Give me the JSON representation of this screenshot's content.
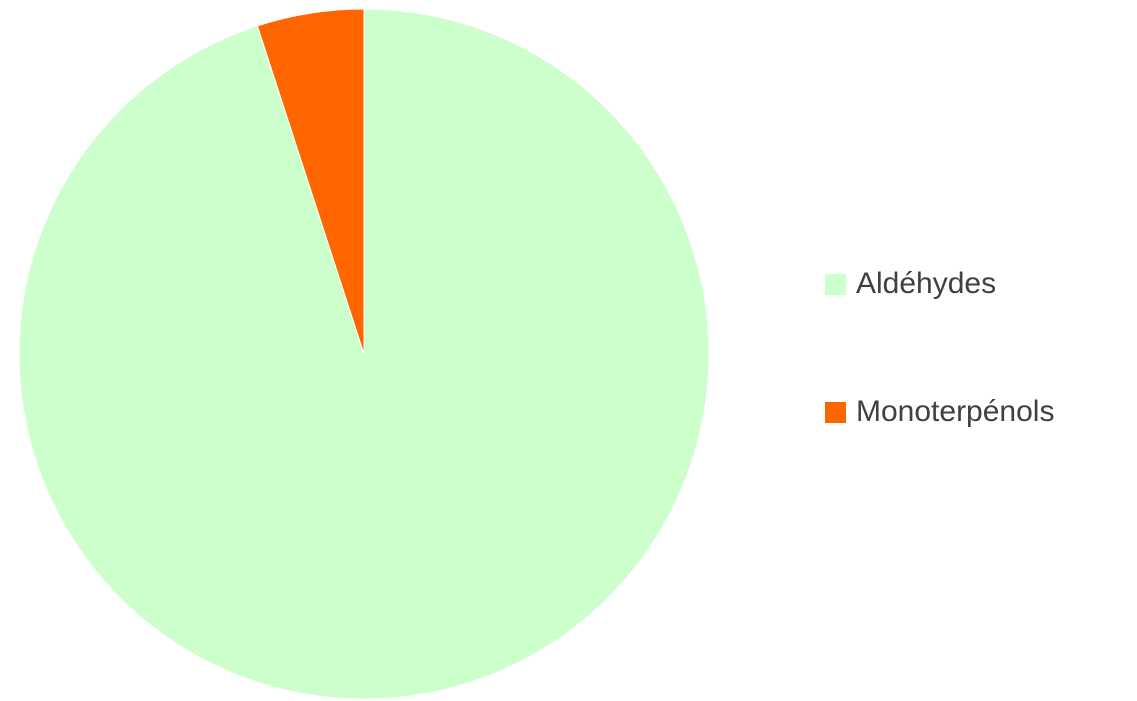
{
  "chart_data": {
    "type": "pie",
    "title": "",
    "legend_position": "right",
    "start_angle": "12 o'clock",
    "direction": "clockwise",
    "categories": [
      "Aldéhydes",
      "Monoterpénols"
    ],
    "values": [
      95,
      5
    ],
    "colors": [
      "#ccffcc",
      "#ff6600"
    ],
    "slice_border_color": "#ffffff"
  }
}
